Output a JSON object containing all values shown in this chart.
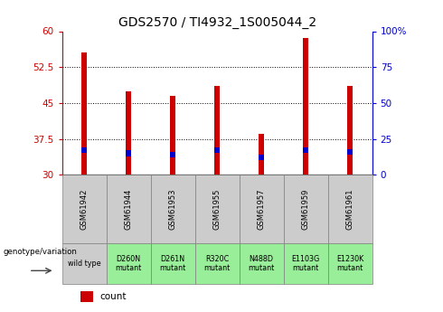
{
  "title": "GDS2570 / TI4932_1S005044_2",
  "samples": [
    "GSM61942",
    "GSM61944",
    "GSM61953",
    "GSM61955",
    "GSM61957",
    "GSM61959",
    "GSM61961"
  ],
  "genotypes": [
    "wild type",
    "D260N\nmutant",
    "D261N\nmutant",
    "R320C\nmutant",
    "N488D\nmutant",
    "E1103G\nmutant",
    "E1230K\nmutant"
  ],
  "counts": [
    55.5,
    47.5,
    46.5,
    48.5,
    38.5,
    58.5,
    48.5
  ],
  "percentile_ranks": [
    17,
    15,
    14,
    17,
    12,
    17,
    16
  ],
  "bar_bottom": 30,
  "count_color": "#cc0000",
  "percentile_color": "#0000cc",
  "ylim_left": [
    30,
    60
  ],
  "ylim_right": [
    0,
    100
  ],
  "left_yticks": [
    30,
    37.5,
    45,
    52.5,
    60
  ],
  "right_yticks": [
    0,
    25,
    50,
    75,
    100
  ],
  "right_ytick_labels": [
    "0",
    "25",
    "50",
    "75",
    "100%"
  ],
  "bar_width": 0.12,
  "grid_color": "#000000",
  "bg_color": "#ffffff",
  "genotype_bg_wt": "#cccccc",
  "genotype_bg_mutant": "#99ee99",
  "header_bg": "#cccccc",
  "percentile_bar_height": 1.2,
  "title_fontsize": 10,
  "tick_fontsize": 7.5,
  "label_fontsize": 7
}
